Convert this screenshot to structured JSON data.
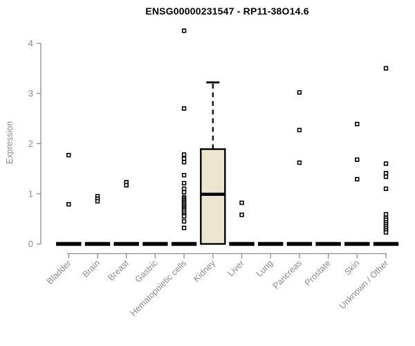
{
  "title": "ENSG00000231547 - RP11-38O14.6",
  "colors": {
    "background": "#ffffff",
    "axis": "#8c8c8c",
    "label_text": "#8c8c8c",
    "title_text": "#000000",
    "box_fill": "#ece6ce",
    "stroke": "#000000"
  },
  "chart_data": {
    "type": "boxplot",
    "title": "ENSG00000231547 - RP11-38O14.6",
    "xlabel": "",
    "ylabel": "Expression",
    "ylim": [
      0,
      4.3
    ],
    "yticks": [
      0,
      1,
      2,
      3,
      4
    ],
    "grid": false,
    "legend": null,
    "categories": [
      "Bladder",
      "Brain",
      "Breast",
      "Gastric",
      "Hematopoietic cells",
      "Kidney",
      "Liver",
      "Lung",
      "Pancreas",
      "Prostate",
      "Skin",
      "Unknown / Other"
    ],
    "groups": [
      {
        "category": "Bladder",
        "median": 0,
        "q1": 0,
        "q3": 0,
        "whisker_low": 0,
        "whisker_high": 0,
        "outliers": [
          1.77,
          0.79
        ]
      },
      {
        "category": "Brain",
        "median": 0,
        "q1": 0,
        "q3": 0,
        "whisker_low": 0,
        "whisker_high": 0,
        "outliers": [
          0.95,
          0.9,
          0.85
        ]
      },
      {
        "category": "Breast",
        "median": 0,
        "q1": 0,
        "q3": 0,
        "whisker_low": 0,
        "whisker_high": 0,
        "outliers": [
          1.23,
          1.17
        ]
      },
      {
        "category": "Gastric",
        "median": 0,
        "q1": 0,
        "q3": 0,
        "whisker_low": 0,
        "whisker_high": 0,
        "outliers": []
      },
      {
        "category": "Hematopoietic cells",
        "median": 0,
        "q1": 0,
        "q3": 0,
        "whisker_low": 0,
        "whisker_high": 0,
        "outliers": [
          4.25,
          2.7,
          1.78,
          1.7,
          1.63,
          1.37,
          1.21,
          1.1,
          1.03,
          0.93,
          0.9,
          0.87,
          0.84,
          0.81,
          0.78,
          0.75,
          0.72,
          0.69,
          0.66,
          0.62,
          0.58,
          0.55,
          0.45,
          0.32
        ]
      },
      {
        "category": "Kidney",
        "median": 0.99,
        "q1": 0,
        "q3": 1.89,
        "whisker_low": 0,
        "whisker_high": 3.22,
        "outliers": []
      },
      {
        "category": "Liver",
        "median": 0,
        "q1": 0,
        "q3": 0,
        "whisker_low": 0,
        "whisker_high": 0,
        "outliers": [
          0.82,
          0.58
        ]
      },
      {
        "category": "Lung",
        "median": 0,
        "q1": 0,
        "q3": 0,
        "whisker_low": 0,
        "whisker_high": 0,
        "outliers": []
      },
      {
        "category": "Pancreas",
        "median": 0,
        "q1": 0,
        "q3": 0,
        "whisker_low": 0,
        "whisker_high": 0,
        "outliers": [
          3.02,
          2.27,
          1.62
        ]
      },
      {
        "category": "Prostate",
        "median": 0,
        "q1": 0,
        "q3": 0,
        "whisker_low": 0,
        "whisker_high": 0,
        "outliers": []
      },
      {
        "category": "Skin",
        "median": 0,
        "q1": 0,
        "q3": 0,
        "whisker_low": 0,
        "whisker_high": 0,
        "outliers": [
          2.39,
          1.68,
          1.29
        ]
      },
      {
        "category": "Unknown / Other",
        "median": 0,
        "q1": 0,
        "q3": 0,
        "whisker_low": 0,
        "whisker_high": 0,
        "outliers": [
          3.5,
          1.6,
          1.41,
          1.34,
          1.1,
          0.59,
          0.52,
          0.48,
          0.43,
          0.39,
          0.35,
          0.31,
          0.27,
          0.23
        ]
      }
    ]
  }
}
